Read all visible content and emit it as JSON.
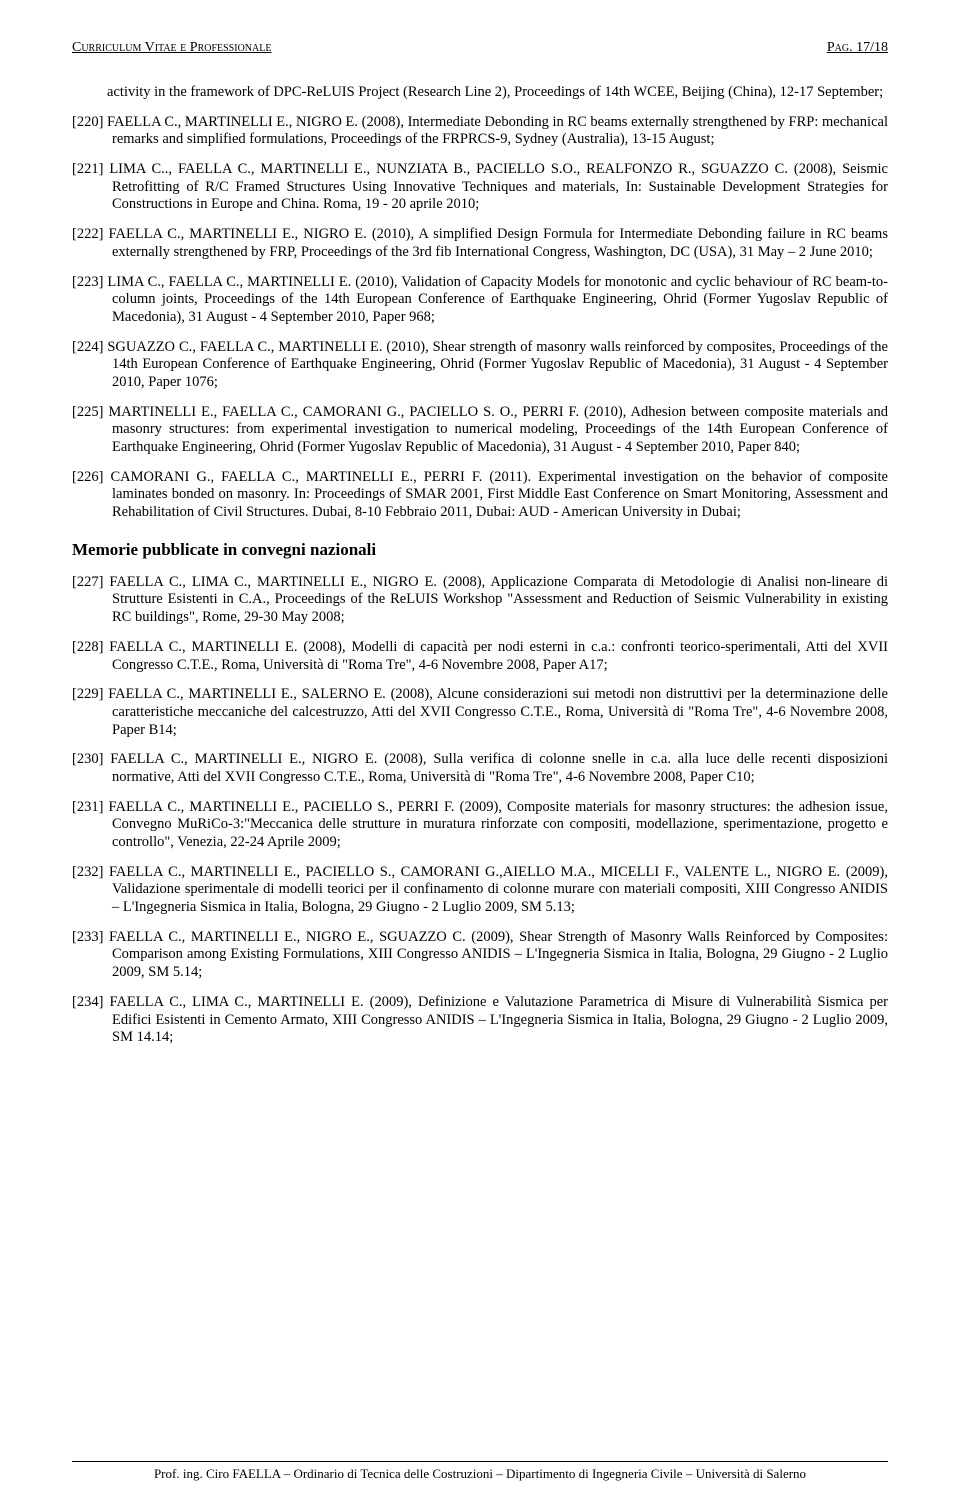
{
  "header": {
    "left": "Curriculum Vitae e Professionale",
    "right": "Pag. 17/18"
  },
  "continuation": "activity in the framework of DPC-ReLUIS Project (Research Line 2), Proceedings of 14th WCEE, Beijing (China), 12-17 September;",
  "entries_a": [
    {
      "key": "[220]",
      "text": "FAELLA C., MARTINELLI E., NIGRO E. (2008), Intermediate Debonding in RC beams externally strengthened by FRP: mechanical remarks and simplified formulations, Proceedings of the FRPRCS-9, Sydney (Australia), 13-15 August;"
    },
    {
      "key": "[221]",
      "text": "LIMA C.., FAELLA C., MARTINELLI E., NUNZIATA B., PACIELLO S.O., REALFONZO R., SGUAZZO C. (2008), Seismic Retrofitting of R/C Framed Structures Using Innovative Techniques and materials, In: Sustainable Development Strategies for Constructions in Europe and China. Roma, 19 - 20 aprile 2010;"
    },
    {
      "key": "[222]",
      "text": "FAELLA C., MARTINELLI E., NIGRO E. (2010), A simplified Design Formula for Intermediate Debonding failure in RC beams externally strengthened by FRP, Proceedings of the 3rd fib International Congress, Washington, DC (USA), 31 May – 2 June 2010;"
    },
    {
      "key": "[223]",
      "text": "LIMA C., FAELLA C., MARTINELLI E. (2010), Validation of Capacity Models for monotonic and cyclic behaviour of RC beam-to-column joints, Proceedings of the 14th European Conference of Earthquake Engineering, Ohrid (Former Yugoslav Republic of Macedonia), 31 August - 4 September 2010, Paper 968;"
    },
    {
      "key": "[224]",
      "text": "SGUAZZO C., FAELLA C., MARTINELLI E. (2010), Shear strength of masonry walls reinforced by composites, Proceedings of the 14th European Conference of Earthquake Engineering, Ohrid (Former Yugoslav Republic of Macedonia), 31 August - 4 September 2010, Paper 1076;"
    },
    {
      "key": "[225]",
      "text": "MARTINELLI E., FAELLA C., CAMORANI G., PACIELLO S. O., PERRI F. (2010), Adhesion between composite materials and masonry structures: from experimental investigation to numerical modeling, Proceedings of the 14th European Conference of Earthquake Engineering, Ohrid (Former Yugoslav Republic of Macedonia), 31 August - 4 September 2010, Paper 840;"
    },
    {
      "key": "[226]",
      "text": "CAMORANI G., FAELLA C., MARTINELLI E., PERRI F. (2011). Experimental investigation on the behavior of composite laminates bonded on masonry. In: Proceedings of SMAR 2001, First Middle East Conference on Smart Monitoring, Assessment and Rehabilitation of Civil Structures. Dubai, 8-10 Febbraio 2011, Dubai: AUD - American University in Dubai;"
    }
  ],
  "section_heading": "Memorie pubblicate in convegni nazionali",
  "entries_b": [
    {
      "key": "[227]",
      "text": "FAELLA C., LIMA C., MARTINELLI E., NIGRO E. (2008), Applicazione Comparata di Metodologie di Analisi non-lineare di Strutture Esistenti in C.A., Proceedings of the ReLUIS Workshop \"Assessment and Reduction of Seismic Vulnerability in existing RC buildings\", Rome, 29-30 May 2008;"
    },
    {
      "key": "[228]",
      "text": "FAELLA C., MARTINELLI E. (2008), Modelli di capacità per nodi esterni in c.a.: confronti teorico-sperimentali, Atti del XVII Congresso C.T.E., Roma, Università di \"Roma Tre\", 4-6 Novembre 2008, Paper A17;"
    },
    {
      "key": "[229]",
      "text": "FAELLA C., MARTINELLI E., SALERNO E. (2008), Alcune considerazioni sui metodi non distruttivi per la determinazione delle caratteristiche meccaniche del calcestruzzo, Atti del XVII Congresso C.T.E., Roma, Università di \"Roma Tre\", 4-6 Novembre 2008, Paper B14;"
    },
    {
      "key": "[230]",
      "text": "FAELLA C., MARTINELLI E., NIGRO E. (2008), Sulla verifica di colonne snelle in c.a. alla luce delle recenti disposizioni normative, Atti del XVII Congresso C.T.E., Roma, Università di \"Roma Tre\", 4-6 Novembre 2008, Paper C10;"
    },
    {
      "key": "[231]",
      "text": "FAELLA C., MARTINELLI E., PACIELLO S., PERRI F. (2009), Composite materials for masonry structures: the adhesion issue, Convegno MuRiCo-3:\"Meccanica delle strutture in muratura rinforzate con compositi, modellazione, sperimentazione, progetto e controllo\", Venezia, 22-24 Aprile 2009;"
    },
    {
      "key": "[232]",
      "text": "FAELLA C., MARTINELLI E., PACIELLO S., CAMORANI G.,AIELLO M.A., MICELLI F., VALENTE L., NIGRO E. (2009), Validazione sperimentale di modelli teorici per il confinamento di colonne murare con materiali compositi, XIII Congresso ANIDIS – L'Ingegneria Sismica in Italia, Bologna, 29 Giugno - 2 Luglio 2009, SM 5.13;"
    },
    {
      "key": "[233]",
      "text": "FAELLA C., MARTINELLI E., NIGRO E., SGUAZZO C. (2009), Shear Strength of Masonry Walls Reinforced by Composites: Comparison among Existing Formulations, XIII Congresso ANIDIS – L'Ingegneria Sismica in Italia, Bologna, 29 Giugno - 2 Luglio 2009, SM 5.14;"
    },
    {
      "key": "[234]",
      "text": "FAELLA C., LIMA C., MARTINELLI E. (2009), Definizione e Valutazione Parametrica di Misure di Vulnerabilità Sismica per Edifici Esistenti in Cemento Armato, XIII Congresso ANIDIS – L'Ingegneria Sismica in Italia, Bologna, 29 Giugno - 2 Luglio 2009, SM 14.14;"
    }
  ],
  "footer": "Prof. ing. Ciro FAELLA – Ordinario di Tecnica delle Costruzioni – Dipartimento di Ingegneria Civile – Università di Salerno"
}
